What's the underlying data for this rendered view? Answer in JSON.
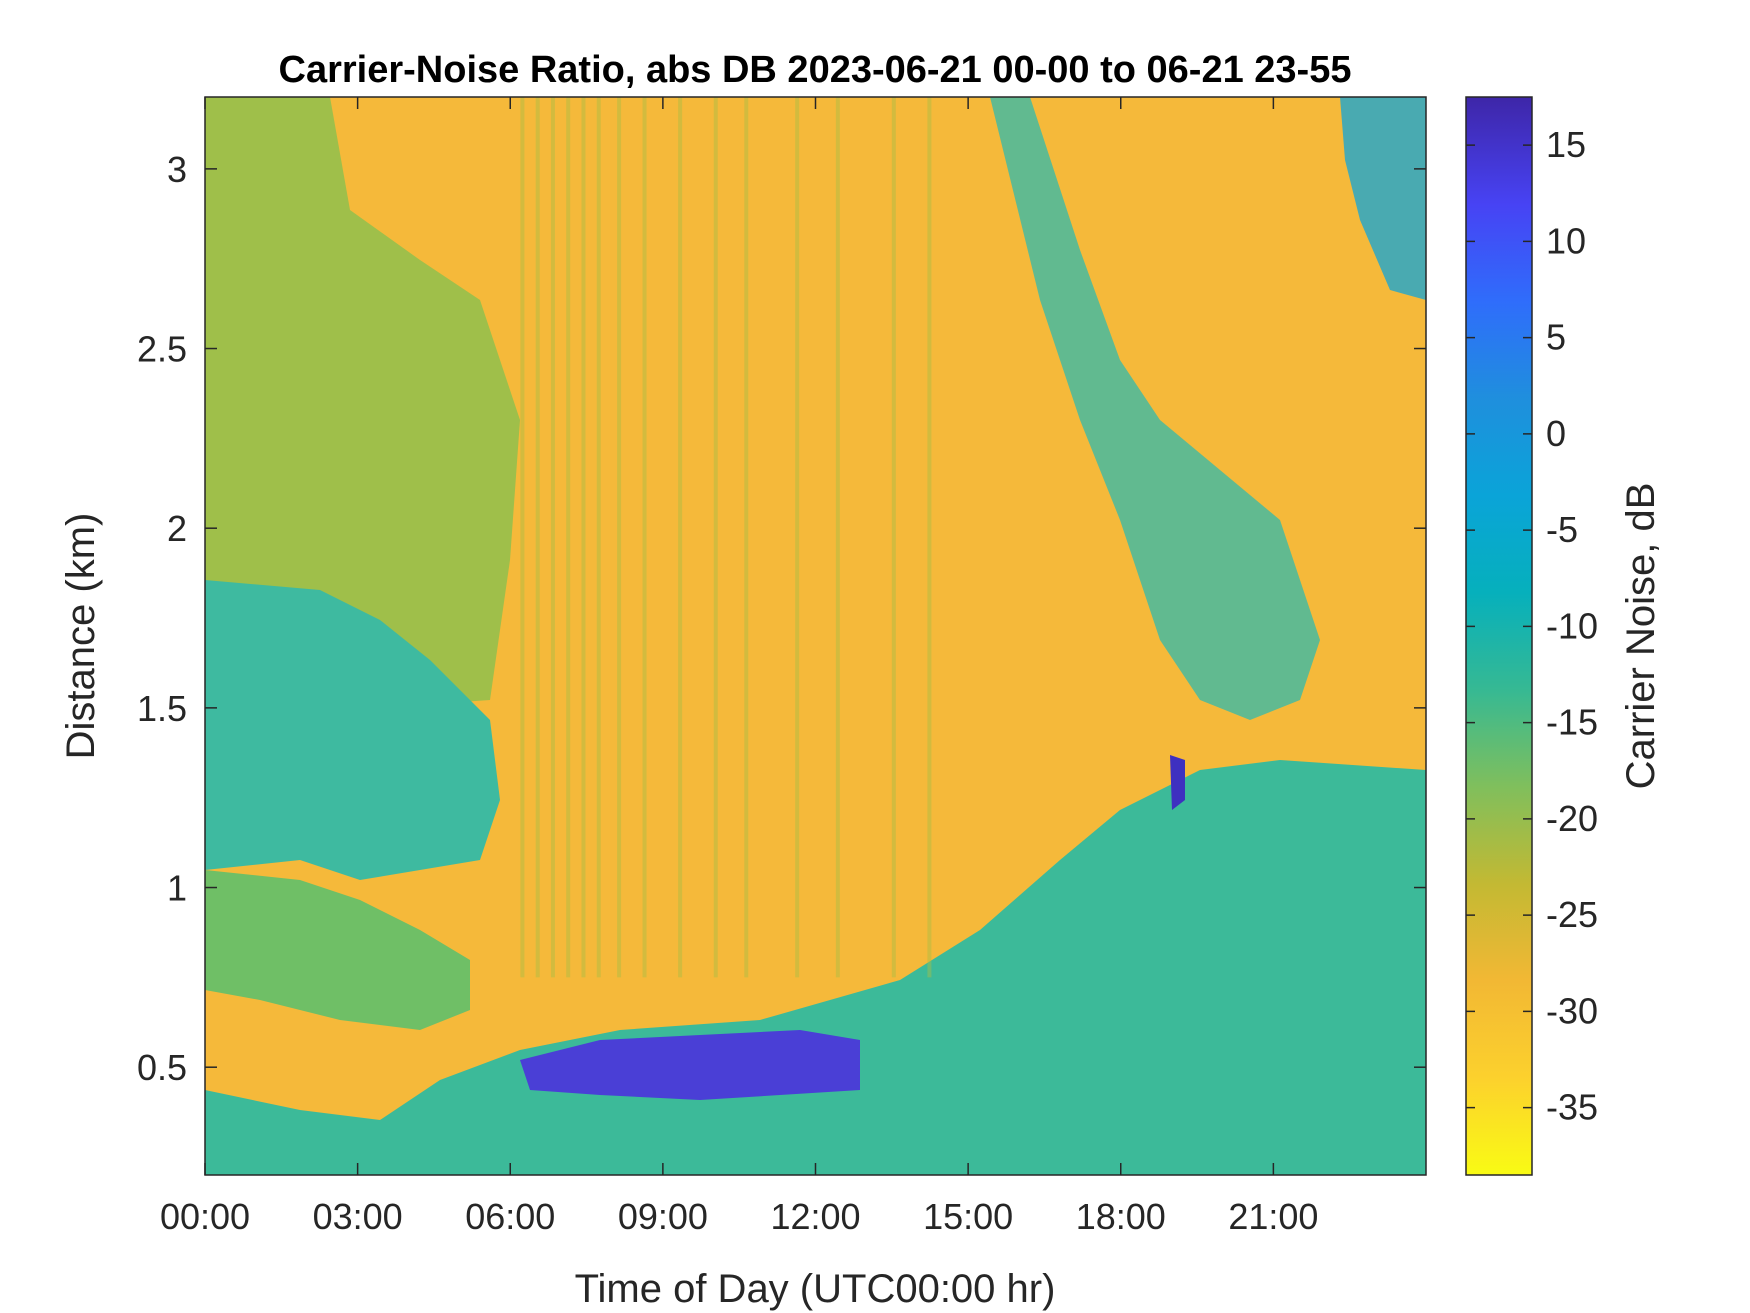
{
  "chart_data": {
    "type": "heatmap",
    "title": "Carrier-Noise Ratio, abs DB 2023-06-21 00-00 to 06-21 23-55",
    "xlabel": "Time of Day (UTC00:00 hr)",
    "ylabel": "Distance (km)",
    "colorbar_label": "Carrier Noise, dB",
    "xlim": [
      0,
      24
    ],
    "ylim": [
      0.2,
      3.2
    ],
    "clim": [
      -38.5,
      17.5
    ],
    "x_ticks": [
      0,
      3,
      6,
      9,
      12,
      15,
      18,
      21
    ],
    "x_tick_labels": [
      "00:00",
      "03:00",
      "06:00",
      "09:00",
      "12:00",
      "15:00",
      "18:00",
      "21:00"
    ],
    "y_ticks": [
      0.5,
      1,
      1.5,
      2,
      2.5,
      3
    ],
    "y_tick_labels": [
      "0.5",
      "1",
      "1.5",
      "2",
      "2.5",
      "3"
    ],
    "colorbar_ticks": [
      15,
      10,
      5,
      0,
      -5,
      -10,
      -15,
      -20,
      -25,
      -30,
      -35
    ],
    "colorbar_tick_labels": [
      "15",
      "10",
      "5",
      "0",
      "-5",
      "-10",
      "-15",
      "-20",
      "-25",
      "-30",
      "-35"
    ],
    "colormap": [
      "#3e26a8",
      "#4743f4",
      "#2f6dfb",
      "#1f8fdd",
      "#0aa4d8",
      "#06b0bc",
      "#36b993",
      "#80bf5c",
      "#c3b933",
      "#f2b834",
      "#fcd12d",
      "#f9fb14"
    ],
    "grid": false,
    "layers_approx_values_db": {
      "low_noise_yellow_band": -31,
      "boundary_layer_green_cyan": -15,
      "aerosol_plumes_blue": 10
    }
  }
}
